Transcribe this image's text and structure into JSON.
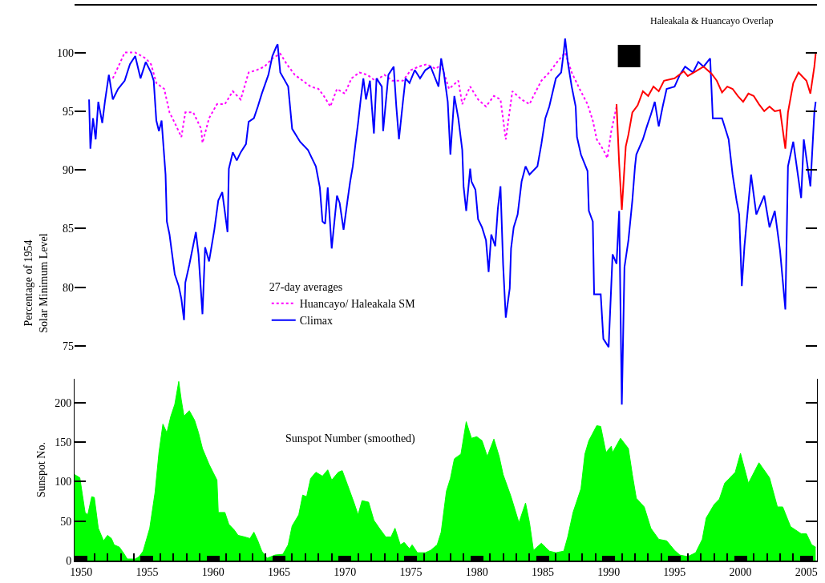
{
  "chart_data": [
    {
      "type": "line",
      "ylabel": "Percentage of 1954\nSolar Minimum Level",
      "legend_title": "27-day averages",
      "legend": "bottom left",
      "annotations": [
        "Haleakala & Huancayo Overlap"
      ],
      "xlim": [
        1949.5,
        2005.8
      ],
      "ylim": [
        56.7,
        104
      ],
      "yticks": [
        75,
        80,
        85,
        90,
        95,
        100
      ],
      "tick_labels": "y",
      "series": [
        {
          "name": "Huancayo/ Haleakala SM",
          "color": "#ff00ff",
          "line_style": "dotted",
          "x": [
            1952.4,
            1952.9,
            1953.3,
            1954.1,
            1954.9,
            1955.3,
            1955.7,
            1956.3,
            1956.7,
            1957.1,
            1957.6,
            1957.9,
            1958.5,
            1959.1,
            1959.2,
            1959.7,
            1960.3,
            1960.9,
            1961.5,
            1962.1,
            1962.7,
            1963.3,
            1963.9,
            1964.5,
            1965.1,
            1965.6,
            1966.2,
            1966.8,
            1967.4,
            1968.0,
            1968.4,
            1968.9,
            1969.4,
            1970.0,
            1970.5,
            1971.1,
            1971.7,
            1972.3,
            1973.0,
            1973.6,
            1974.4,
            1975.0,
            1975.6,
            1976.2,
            1976.9,
            1977.3,
            1977.9,
            1978.6,
            1978.9,
            1979.5,
            1980.1,
            1980.7,
            1981.3,
            1981.8,
            1982.2,
            1982.7,
            1983.4,
            1984.0,
            1984.3,
            1984.9,
            1985.5,
            1986.1,
            1986.7,
            1987.2,
            1987.8,
            1988.4,
            1988.8,
            1989.1,
            1989.6,
            1989.9,
            1990.2,
            1990.6
          ],
          "values": [
            97.8,
            99.0,
            100.0,
            100.0,
            99.5,
            99.0,
            97.4,
            96.9,
            94.9,
            94.0,
            92.8,
            94.9,
            94.9,
            93.5,
            92.3,
            94.4,
            95.6,
            95.6,
            96.7,
            96.0,
            98.3,
            98.5,
            98.8,
            99.5,
            99.9,
            99.0,
            98.1,
            97.6,
            97.1,
            96.9,
            96.3,
            95.4,
            96.9,
            96.5,
            97.8,
            98.3,
            98.1,
            97.6,
            98.1,
            97.6,
            97.6,
            98.5,
            98.8,
            99.0,
            98.6,
            99.0,
            96.9,
            97.6,
            95.6,
            97.1,
            96.0,
            95.4,
            96.3,
            96.0,
            92.6,
            96.7,
            96.0,
            95.6,
            96.3,
            97.6,
            98.3,
            99.2,
            100.0,
            98.3,
            96.9,
            95.6,
            94.2,
            92.6,
            91.7,
            91.0,
            93.3,
            95.4
          ]
        },
        {
          "name": "Climax",
          "color": "#0000ff",
          "x": [
            1950.6,
            1950.7,
            1950.9,
            1951.1,
            1951.3,
            1951.6,
            1951.8,
            1952.1,
            1952.4,
            1952.8,
            1953.3,
            1953.7,
            1954.1,
            1954.5,
            1954.9,
            1955.3,
            1955.5,
            1955.7,
            1955.9,
            1956.1,
            1956.4,
            1956.5,
            1956.7,
            1956.9,
            1957.1,
            1957.4,
            1957.6,
            1957.8,
            1957.9,
            1958.2,
            1958.7,
            1958.9,
            1959.2,
            1959.4,
            1959.7,
            1960.1,
            1960.4,
            1960.7,
            1961.1,
            1961.2,
            1961.5,
            1961.8,
            1962.1,
            1962.5,
            1962.7,
            1963.1,
            1963.4,
            1963.7,
            1964.2,
            1964.5,
            1964.8,
            1964.9,
            1965.1,
            1965.7,
            1966.0,
            1966.6,
            1967.2,
            1967.8,
            1968.1,
            1968.3,
            1968.5,
            1968.7,
            1969.0,
            1969.4,
            1969.6,
            1969.9,
            1970.2,
            1970.4,
            1970.6,
            1970.8,
            1971.0,
            1971.2,
            1971.4,
            1971.6,
            1971.9,
            1972.2,
            1972.4,
            1972.8,
            1972.9,
            1973.3,
            1973.7,
            1973.9,
            1974.1,
            1974.4,
            1974.6,
            1974.9,
            1975.3,
            1975.7,
            1976.1,
            1976.5,
            1977.1,
            1977.3,
            1977.5,
            1977.8,
            1978.0,
            1978.3,
            1978.6,
            1978.9,
            1979.0,
            1979.2,
            1979.5,
            1979.6,
            1979.9,
            1980.1,
            1980.4,
            1980.7,
            1980.9,
            1981.1,
            1981.4,
            1981.6,
            1981.8,
            1982.0,
            1982.2,
            1982.5,
            1982.6,
            1982.8,
            1983.1,
            1983.4,
            1983.7,
            1984.0,
            1984.6,
            1984.9,
            1985.2,
            1985.5,
            1986.0,
            1986.4,
            1986.6,
            1986.7,
            1986.9,
            1987.2,
            1987.5,
            1987.6,
            1987.9,
            1988.4,
            1988.5,
            1988.8,
            1988.9,
            1989.4,
            1989.6,
            1990.0,
            1990.3,
            1990.6,
            1990.8,
            1991.0,
            1991.2,
            1991.5,
            1991.8,
            1992.0,
            1992.1,
            1992.6,
            1992.9,
            1993.2,
            1993.5,
            1993.8,
            1994.1,
            1994.4,
            1995.0,
            1995.4,
            1995.8,
            1996.4,
            1996.8,
            1997.2,
            1997.7,
            1997.9,
            1998.6,
            1999.1,
            1999.4,
            1999.7,
            1999.9,
            2000.1,
            2000.3,
            2000.8,
            2001.2,
            2001.8,
            2002.2,
            2002.6,
            2003.0,
            2003.4,
            2003.6,
            2004.0,
            2004.6,
            2004.8,
            2005.3,
            2005.6,
            2005.7
          ],
          "values": [
            96.0,
            91.8,
            94.4,
            92.6,
            95.8,
            94.0,
            95.8,
            98.1,
            96.0,
            96.9,
            97.6,
            99.0,
            99.7,
            97.8,
            99.2,
            98.3,
            97.6,
            94.2,
            93.3,
            94.2,
            89.6,
            85.6,
            84.5,
            82.8,
            81.1,
            80.1,
            79.0,
            77.2,
            80.4,
            81.9,
            84.7,
            82.8,
            77.7,
            83.4,
            82.2,
            84.9,
            87.4,
            88.1,
            84.7,
            90.1,
            91.5,
            90.8,
            91.5,
            92.2,
            94.1,
            94.4,
            95.4,
            96.5,
            98.1,
            99.7,
            100.5,
            100.7,
            98.3,
            97.1,
            93.5,
            92.4,
            91.7,
            90.3,
            88.5,
            85.6,
            85.4,
            88.5,
            83.3,
            87.8,
            87.2,
            84.9,
            87.4,
            89.0,
            90.3,
            92.2,
            94.0,
            96.0,
            97.8,
            96.0,
            97.6,
            93.1,
            97.8,
            97.1,
            93.3,
            98.1,
            98.8,
            95.4,
            92.6,
            95.8,
            97.8,
            97.4,
            98.5,
            97.8,
            98.5,
            98.8,
            97.1,
            99.5,
            98.3,
            95.8,
            91.3,
            96.3,
            94.4,
            91.7,
            88.6,
            86.5,
            90.1,
            89.0,
            88.3,
            85.8,
            85.1,
            84.0,
            81.3,
            84.5,
            83.5,
            86.7,
            88.6,
            81.9,
            77.4,
            79.9,
            83.3,
            85.1,
            86.2,
            89.0,
            90.3,
            89.6,
            90.3,
            92.2,
            94.4,
            95.4,
            97.8,
            98.3,
            100.1,
            101.2,
            99.2,
            97.1,
            95.4,
            92.8,
            91.3,
            89.9,
            86.5,
            85.6,
            79.4,
            79.4,
            75.6,
            74.9,
            82.8,
            82.0,
            86.5,
            70.0,
            81.7,
            84.0,
            87.4,
            90.3,
            91.3,
            92.6,
            93.7,
            94.7,
            95.8,
            93.7,
            95.4,
            96.9,
            97.1,
            98.1,
            98.8,
            98.3,
            99.2,
            98.8,
            99.5,
            94.4,
            94.4,
            92.6,
            89.6,
            87.4,
            86.2,
            80.1,
            83.5,
            89.6,
            86.2,
            87.8,
            85.1,
            86.5,
            83.1,
            78.1,
            90.3,
            92.4,
            87.6,
            92.6,
            88.6,
            94.9,
            95.8
          ]
        },
        {
          "color": "#ff0000",
          "x": [
            1990.6,
            1990.8,
            1991.0,
            1991.3,
            1991.5,
            1991.8,
            1992.2,
            1992.6,
            1993.0,
            1993.4,
            1993.8,
            1994.2,
            1995.0,
            1995.7,
            1996.0,
            1996.6,
            1997.2,
            1997.8,
            1998.2,
            1998.6,
            1999.0,
            1999.4,
            1999.8,
            2000.2,
            2000.6,
            2001.0,
            2001.4,
            2001.8,
            2002.2,
            2002.6,
            2003.0,
            2003.4,
            2003.6,
            2004.0,
            2004.4,
            2005.0,
            2005.3,
            2005.6,
            2005.7
          ],
          "values": [
            95.6,
            90.5,
            86.6,
            92.0,
            93.0,
            94.9,
            95.5,
            96.7,
            96.3,
            97.1,
            96.7,
            97.6,
            97.8,
            98.4,
            98.0,
            98.4,
            98.8,
            98.2,
            97.6,
            96.6,
            97.1,
            96.9,
            96.3,
            95.8,
            96.5,
            96.3,
            95.6,
            95.0,
            95.4,
            95.0,
            95.1,
            91.8,
            94.9,
            97.4,
            98.3,
            97.6,
            96.5,
            98.8,
            99.9
          ]
        },
        {
          "type": "scatter",
          "marker": "square",
          "color": "#000000",
          "x": [
            1991.55
          ],
          "values": [
            99.7
          ]
        }
      ]
    },
    {
      "type": "area",
      "ylabel": "Sunspot No.",
      "annotations": [
        "Sunspot Number (smoothed)"
      ],
      "color": "#00ff00",
      "xlim": [
        1949.5,
        2005.8
      ],
      "ylim": [
        0,
        230
      ],
      "yticks": [
        0,
        50,
        100,
        150,
        200
      ],
      "xticks": [
        1950,
        {
          "value": 1951,
          "label": null
        },
        {
          "value": 1952,
          "label": null
        },
        {
          "value": 1953,
          "label": null
        },
        {
          "value": 1954,
          "label": null
        },
        1955,
        {
          "value": 1956,
          "label": null
        },
        {
          "value": 1957,
          "label": null
        },
        {
          "value": 1958,
          "label": null
        },
        {
          "value": 1959,
          "label": null
        },
        1960,
        {
          "value": 1961,
          "label": null
        },
        {
          "value": 1962,
          "label": null
        },
        {
          "value": 1963,
          "label": null
        },
        {
          "value": 1964,
          "label": null
        },
        1965,
        {
          "value": 1966,
          "label": null
        },
        {
          "value": 1967,
          "label": null
        },
        {
          "value": 1968,
          "label": null
        },
        {
          "value": 1969,
          "label": null
        },
        1970,
        {
          "value": 1971,
          "label": null
        },
        {
          "value": 1972,
          "label": null
        },
        {
          "value": 1973,
          "label": null
        },
        {
          "value": 1974,
          "label": null
        },
        1975,
        {
          "value": 1976,
          "label": null
        },
        {
          "value": 1977,
          "label": null
        },
        {
          "value": 1978,
          "label": null
        },
        {
          "value": 1979,
          "label": null
        },
        1980,
        {
          "value": 1981,
          "label": null
        },
        {
          "value": 1982,
          "label": null
        },
        {
          "value": 1983,
          "label": null
        },
        {
          "value": 1984,
          "label": null
        },
        1985,
        {
          "value": 1986,
          "label": null
        },
        {
          "value": 1987,
          "label": null
        },
        {
          "value": 1988,
          "label": null
        },
        {
          "value": 1989,
          "label": null
        },
        1990,
        {
          "value": 1991,
          "label": null
        },
        {
          "value": 1992,
          "label": null
        },
        {
          "value": 1993,
          "label": null
        },
        {
          "value": 1994,
          "label": null
        },
        1995,
        {
          "value": 1996,
          "label": null
        },
        {
          "value": 1997,
          "label": null
        },
        {
          "value": 1998,
          "label": null
        },
        {
          "value": 1999,
          "label": null
        },
        2000,
        {
          "value": 2001,
          "label": null
        },
        {
          "value": 2002,
          "label": null
        },
        {
          "value": 2003,
          "label": null
        },
        {
          "value": 2004,
          "label": null
        },
        2005
      ],
      "x": [
        1949.5,
        1949.9,
        1950.3,
        1950.5,
        1950.8,
        1951.0,
        1951.3,
        1951.7,
        1952.0,
        1952.3,
        1952.5,
        1952.9,
        1953.2,
        1953.5,
        1954.1,
        1954.4,
        1954.7,
        1955.2,
        1955.6,
        1955.9,
        1956.2,
        1956.5,
        1956.8,
        1957.1,
        1957.4,
        1957.6,
        1957.8,
        1958.2,
        1958.6,
        1958.9,
        1959.2,
        1959.7,
        1960.0,
        1960.3,
        1960.4,
        1960.9,
        1961.2,
        1961.6,
        1961.9,
        1962.4,
        1962.8,
        1963.1,
        1963.4,
        1963.7,
        1964.1,
        1964.7,
        1965.3,
        1965.7,
        1966.0,
        1966.5,
        1966.8,
        1967.1,
        1967.4,
        1967.8,
        1968.3,
        1968.7,
        1969.0,
        1969.5,
        1969.8,
        1970.2,
        1970.7,
        1971.0,
        1971.3,
        1971.8,
        1972.2,
        1972.7,
        1973.1,
        1973.5,
        1973.8,
        1974.2,
        1974.5,
        1974.9,
        1975.1,
        1975.5,
        1976.1,
        1976.5,
        1977.0,
        1977.3,
        1977.7,
        1978.0,
        1978.3,
        1978.8,
        1979.2,
        1979.6,
        1980.0,
        1980.4,
        1980.8,
        1981.3,
        1981.7,
        1982.0,
        1982.6,
        1983.2,
        1983.7,
        1984.0,
        1984.3,
        1984.9,
        1985.5,
        1986.0,
        1986.6,
        1986.9,
        1987.3,
        1987.9,
        1988.2,
        1988.5,
        1989.1,
        1989.4,
        1989.8,
        1990.2,
        1990.3,
        1990.9,
        1991.5,
        1991.8,
        1992.1,
        1992.7,
        1993.2,
        1993.8,
        1994.4,
        1995.0,
        1995.4,
        1996.0,
        1996.6,
        1997.1,
        1997.4,
        1998.0,
        1998.4,
        1998.8,
        1999.2,
        1999.6,
        2000.0,
        2000.6,
        2001.4,
        2002.2,
        2002.8,
        2003.2,
        2003.8,
        2004.6,
        2005.0,
        2005.4,
        2005.7
      ],
      "values": [
        109,
        105,
        61,
        58,
        81,
        80,
        41,
        25,
        32,
        28,
        20,
        17,
        10,
        2,
        2,
        5,
        12,
        41,
        86,
        137,
        173,
        162,
        183,
        198,
        227,
        203,
        183,
        190,
        178,
        162,
        142,
        122,
        112,
        102,
        61,
        61,
        46,
        39,
        32,
        30,
        28,
        36,
        25,
        12,
        3,
        7,
        8,
        20,
        44,
        58,
        83,
        81,
        104,
        112,
        107,
        115,
        102,
        112,
        114,
        96,
        73,
        58,
        76,
        74,
        51,
        39,
        30,
        30,
        41,
        20,
        23,
        15,
        20,
        10,
        10,
        13,
        20,
        36,
        88,
        104,
        129,
        135,
        176,
        155,
        157,
        152,
        132,
        154,
        132,
        109,
        81,
        48,
        73,
        48,
        13,
        22,
        12,
        10,
        12,
        30,
        61,
        91,
        135,
        152,
        171,
        170,
        137,
        145,
        137,
        155,
        142,
        109,
        79,
        68,
        41,
        27,
        25,
        13,
        7,
        5,
        10,
        27,
        54,
        71,
        78,
        98,
        105,
        112,
        136,
        98,
        124,
        105,
        68,
        68,
        43,
        34,
        34,
        20,
        17
      ]
    }
  ]
}
